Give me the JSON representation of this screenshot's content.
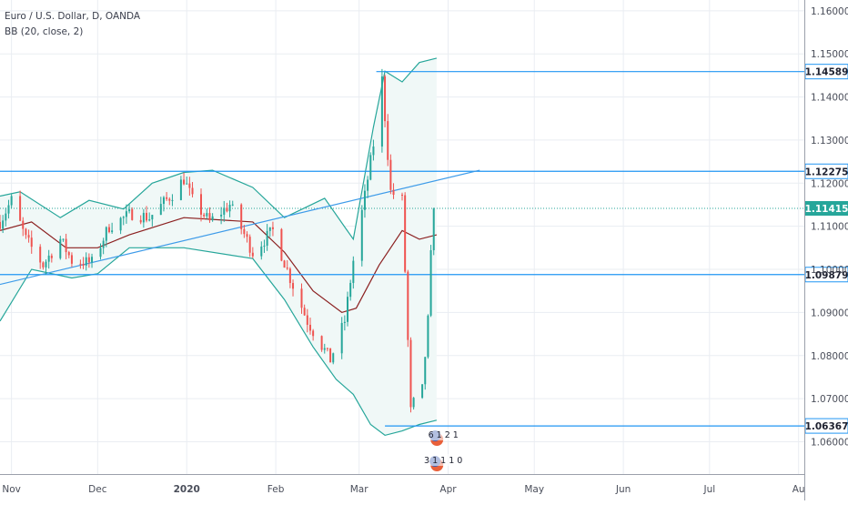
{
  "chart_data": {
    "type": "candlestick",
    "title": "Euro / U.S. Dollar, D, OANDA",
    "indicator": "BB (20, close, 2)",
    "price_axis": {
      "ylim": [
        1.0525,
        1.1625
      ],
      "ticks": [
        1.06,
        1.07,
        1.08,
        1.09,
        1.1,
        1.11,
        1.12,
        1.13,
        1.14,
        1.15,
        1.16
      ],
      "tick_labels": [
        "1.06000",
        "1.07000",
        "1.08000",
        "1.09000",
        "1.10000",
        "1.11000",
        "1.12000",
        "1.13000",
        "1.14000",
        "1.15000",
        "1.16000"
      ]
    },
    "time_axis": {
      "start": "2019-10-28",
      "end": "2020-08-03",
      "ticks": [
        {
          "date": "2019-11-01",
          "label": "Nov",
          "bold": false
        },
        {
          "date": "2019-12-01",
          "label": "Dec",
          "bold": false
        },
        {
          "date": "2020-01-01",
          "label": "2020",
          "bold": true
        },
        {
          "date": "2020-02-01",
          "label": "Feb",
          "bold": false
        },
        {
          "date": "2020-03-01",
          "label": "Mar",
          "bold": false
        },
        {
          "date": "2020-04-01",
          "label": "Apr",
          "bold": false
        },
        {
          "date": "2020-05-01",
          "label": "May",
          "bold": false
        },
        {
          "date": "2020-06-01",
          "label": "Jun",
          "bold": false
        },
        {
          "date": "2020-07-01",
          "label": "Jul",
          "bold": false
        },
        {
          "date": "2020-08-01",
          "label": "Au",
          "bold": false
        }
      ]
    },
    "close_path": [
      [
        "2019-10-28",
        1.111
      ],
      [
        "2019-11-01",
        1.116
      ],
      [
        "2019-11-06",
        1.107
      ],
      [
        "2019-11-12",
        1.101
      ],
      [
        "2019-11-18",
        1.107
      ],
      [
        "2019-11-22",
        1.102
      ],
      [
        "2019-11-29",
        1.1015
      ],
      [
        "2019-12-05",
        1.11
      ],
      [
        "2019-12-13",
        1.113
      ],
      [
        "2019-12-19",
        1.112
      ],
      [
        "2019-12-27",
        1.1175
      ],
      [
        "2019-12-31",
        1.121
      ],
      [
        "2020-01-03",
        1.116
      ],
      [
        "2020-01-09",
        1.111
      ],
      [
        "2020-01-16",
        1.115
      ],
      [
        "2020-01-24",
        1.104
      ],
      [
        "2020-01-31",
        1.109
      ],
      [
        "2020-02-06",
        1.098
      ],
      [
        "2020-02-12",
        1.088
      ],
      [
        "2020-02-20",
        1.079
      ],
      [
        "2020-02-25",
        1.088
      ],
      [
        "2020-02-28",
        1.102
      ],
      [
        "2020-03-03",
        1.117
      ],
      [
        "2020-03-06",
        1.129
      ],
      [
        "2020-03-09",
        1.144
      ],
      [
        "2020-03-12",
        1.118
      ],
      [
        "2020-03-16",
        1.116
      ],
      [
        "2020-03-19",
        1.067
      ],
      [
        "2020-03-20",
        1.069
      ],
      [
        "2020-03-23",
        1.072
      ],
      [
        "2020-03-24",
        1.08
      ],
      [
        "2020-03-25",
        1.088
      ],
      [
        "2020-03-26",
        1.103
      ],
      [
        "2020-03-27",
        1.1141
      ]
    ],
    "bollinger": {
      "upper": [
        [
          "2019-10-28",
          1.117
        ],
        [
          "2019-11-04",
          1.118
        ],
        [
          "2019-11-18",
          1.112
        ],
        [
          "2019-11-28",
          1.116
        ],
        [
          "2019-12-10",
          1.114
        ],
        [
          "2019-12-20",
          1.12
        ],
        [
          "2019-12-31",
          1.1225
        ],
        [
          "2020-01-10",
          1.123
        ],
        [
          "2020-01-24",
          1.119
        ],
        [
          "2020-02-04",
          1.112
        ],
        [
          "2020-02-18",
          1.1165
        ],
        [
          "2020-02-28",
          1.107
        ],
        [
          "2020-03-06",
          1.133
        ],
        [
          "2020-03-10",
          1.146
        ],
        [
          "2020-03-16",
          1.1435
        ],
        [
          "2020-03-22",
          1.148
        ],
        [
          "2020-03-28",
          1.149
        ]
      ],
      "middle": [
        [
          "2019-10-28",
          1.109
        ],
        [
          "2019-11-08",
          1.111
        ],
        [
          "2019-11-20",
          1.105
        ],
        [
          "2019-12-01",
          1.105
        ],
        [
          "2019-12-12",
          1.108
        ],
        [
          "2019-12-31",
          1.112
        ],
        [
          "2020-01-24",
          1.111
        ],
        [
          "2020-02-04",
          1.104
        ],
        [
          "2020-02-14",
          1.095
        ],
        [
          "2020-02-24",
          1.09
        ],
        [
          "2020-02-29",
          1.091
        ],
        [
          "2020-03-08",
          1.101
        ],
        [
          "2020-03-16",
          1.109
        ],
        [
          "2020-03-22",
          1.107
        ],
        [
          "2020-03-28",
          1.108
        ]
      ],
      "lower": [
        [
          "2019-10-28",
          1.088
        ],
        [
          "2019-11-08",
          1.1
        ],
        [
          "2019-11-22",
          1.098
        ],
        [
          "2019-12-01",
          1.099
        ],
        [
          "2019-12-12",
          1.105
        ],
        [
          "2019-12-31",
          1.105
        ],
        [
          "2020-01-24",
          1.1025
        ],
        [
          "2020-02-04",
          1.093
        ],
        [
          "2020-02-14",
          1.082
        ],
        [
          "2020-02-22",
          1.0745
        ],
        [
          "2020-02-28",
          1.071
        ],
        [
          "2020-03-05",
          1.064
        ],
        [
          "2020-03-10",
          1.0615
        ],
        [
          "2020-03-16",
          1.0625
        ],
        [
          "2020-03-22",
          1.064
        ],
        [
          "2020-03-28",
          1.065
        ]
      ]
    },
    "horizontal_levels": [
      {
        "price": 1.14589,
        "label": "1.14589",
        "from_date": "2020-03-07"
      },
      {
        "price": 1.12275,
        "label": "1.12275",
        "from_date": "2019-10-28"
      },
      {
        "price": 1.09879,
        "label": "1.09879",
        "from_date": "2019-10-28"
      },
      {
        "price": 1.06367,
        "label": "1.06367",
        "from_date": "2020-03-10"
      }
    ],
    "current_price": {
      "price": 1.11415,
      "label": "1.11415"
    },
    "trendline": {
      "start": [
        "2019-10-28",
        1.0965
      ],
      "end": [
        "2020-04-12",
        1.123
      ]
    },
    "event_badges": [
      "6 1 2 1",
      "3 1 1 1 0"
    ],
    "colors": {
      "up": "#26a69a",
      "down": "#ef5350",
      "band": "#26a69a",
      "band_fill": "#f0f8f7",
      "middle": "#8b2020",
      "level": "#2196f3",
      "trendline": "#3d9be9",
      "grid": "#eaedf2",
      "axis_text": "#4a4e5a",
      "label_text": "#1e2130"
    }
  }
}
